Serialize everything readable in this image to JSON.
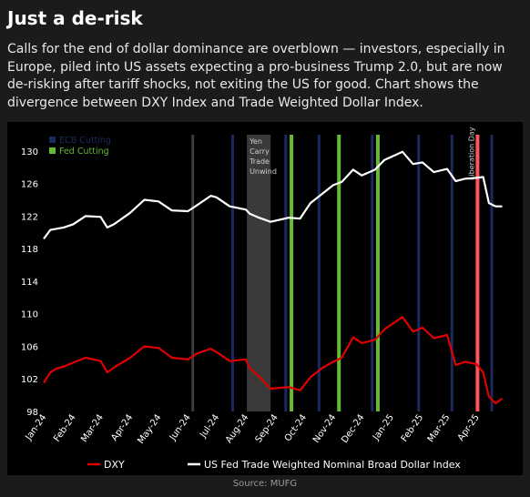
{
  "title": "Just a de-risk",
  "subtitle": "Calls for the end of dollar dominance are overblown — investors, especially in Europe, piled into US assets expecting a pro-business Trump 2.0, but are now de-risking after tariff shocks, not exiting the US for good. Chart shows the divergence between DXY Index and Trade Weighted Dollar Index.",
  "source": "Source: MUFG",
  "colors": {
    "background": "#1b1b1b",
    "chart_background": "#000000",
    "dxy": "#e00000",
    "twd": "#ffffff",
    "ecb_cutting": "#1a2a5e",
    "fed_cutting": "#66bb33",
    "liberation_day": "#ff5555",
    "yen_unwind": "#3a3a3a",
    "vline_dark": "#3c3c3c"
  },
  "chart_data": {
    "type": "line",
    "ylim": [
      98,
      132
    ],
    "yticks": [
      98,
      102,
      106,
      110,
      114,
      118,
      122,
      126,
      130
    ],
    "xlim": [
      "2024-01-01",
      "2025-05-10"
    ],
    "xticks": [
      "Jan-24",
      "Feb-24",
      "Mar-24",
      "Apr-24",
      "May-24",
      "Jun-24",
      "Jul-24",
      "Aug-24",
      "Sep-24",
      "Oct-24",
      "Nov-24",
      "Dec-24",
      "Jan-25",
      "Feb-25",
      "Mar-25",
      "Apr-25"
    ],
    "xtick_dates": [
      "2024-01-01",
      "2024-02-01",
      "2024-03-01",
      "2024-04-01",
      "2024-05-01",
      "2024-06-01",
      "2024-07-01",
      "2024-08-01",
      "2024-09-01",
      "2024-10-01",
      "2024-11-01",
      "2024-12-01",
      "2025-01-01",
      "2025-02-01",
      "2025-03-01",
      "2025-04-01"
    ],
    "grid": false,
    "legend_position": "top-left",
    "legend": [
      {
        "label": "ECB Cutting",
        "color": "#1a2a5e"
      },
      {
        "label": "Fed Cutting",
        "color": "#66bb33"
      }
    ],
    "bottom_legend": [
      {
        "label": "DXY",
        "color": "#e00000"
      },
      {
        "label": "US Fed Trade Weighted Nominal Broad Dollar Index",
        "color": "#ffffff"
      }
    ],
    "annotations": [
      {
        "text": [
          "Yen",
          "Carry",
          "Trade",
          "Unwind"
        ],
        "date": "2024-08-02"
      },
      {
        "text": "Liberation Day",
        "date": "2025-04-02",
        "rotated": true
      }
    ],
    "shaded_regions": [
      {
        "name": "Yen Carry Trade Unwind",
        "start": "2024-08-02",
        "end": "2024-08-27",
        "color": "#3a3a3a"
      }
    ],
    "event_lines": [
      {
        "date": "2024-06-06",
        "kind": "dark"
      },
      {
        "date": "2024-07-18",
        "kind": "ecb"
      },
      {
        "date": "2024-09-12",
        "kind": "ecb"
      },
      {
        "date": "2024-09-18",
        "kind": "fed"
      },
      {
        "date": "2024-10-17",
        "kind": "ecb"
      },
      {
        "date": "2024-11-07",
        "kind": "fed"
      },
      {
        "date": "2024-12-12",
        "kind": "ecb"
      },
      {
        "date": "2024-12-18",
        "kind": "fed"
      },
      {
        "date": "2025-01-30",
        "kind": "ecb"
      },
      {
        "date": "2025-03-06",
        "kind": "ecb"
      },
      {
        "date": "2025-04-02",
        "kind": "liberation"
      },
      {
        "date": "2025-04-17",
        "kind": "ecb"
      }
    ],
    "series": [
      {
        "name": "DXY",
        "color": "#e00000",
        "x": [
          "2024-01-01",
          "2024-01-08",
          "2024-01-15",
          "2024-01-22",
          "2024-02-01",
          "2024-02-14",
          "2024-03-01",
          "2024-03-08",
          "2024-03-15",
          "2024-04-01",
          "2024-04-16",
          "2024-05-01",
          "2024-05-15",
          "2024-06-01",
          "2024-06-10",
          "2024-06-25",
          "2024-07-01",
          "2024-07-15",
          "2024-08-01",
          "2024-08-05",
          "2024-08-15",
          "2024-08-27",
          "2024-09-15",
          "2024-09-27",
          "2024-10-08",
          "2024-10-20",
          "2024-11-01",
          "2024-11-10",
          "2024-11-22",
          "2024-12-01",
          "2024-12-15",
          "2024-12-25",
          "2025-01-13",
          "2025-01-24",
          "2025-02-03",
          "2025-02-15",
          "2025-03-01",
          "2025-03-10",
          "2025-03-20",
          "2025-04-01",
          "2025-04-08",
          "2025-04-14",
          "2025-04-21",
          "2025-04-28"
        ],
        "y": [
          101.5,
          102.8,
          103.3,
          103.5,
          104.0,
          104.6,
          104.2,
          102.8,
          103.4,
          104.6,
          106.0,
          105.8,
          104.6,
          104.4,
          105.1,
          105.7,
          105.3,
          104.2,
          104.4,
          103.3,
          102.3,
          100.8,
          101.0,
          100.6,
          102.2,
          103.3,
          104.1,
          104.6,
          107.1,
          106.4,
          106.8,
          108.1,
          109.6,
          107.8,
          108.3,
          107.0,
          107.4,
          103.7,
          104.1,
          103.8,
          102.8,
          99.8,
          99.0,
          99.6
        ]
      },
      {
        "name": "US Fed Trade Weighted Nominal Broad Dollar Index",
        "color": "#ffffff",
        "x": [
          "2024-01-01",
          "2024-01-08",
          "2024-01-22",
          "2024-02-01",
          "2024-02-14",
          "2024-03-01",
          "2024-03-08",
          "2024-03-15",
          "2024-04-01",
          "2024-04-16",
          "2024-05-01",
          "2024-05-15",
          "2024-06-01",
          "2024-06-10",
          "2024-06-25",
          "2024-07-01",
          "2024-07-15",
          "2024-08-01",
          "2024-08-05",
          "2024-08-15",
          "2024-08-27",
          "2024-09-15",
          "2024-09-27",
          "2024-10-08",
          "2024-10-20",
          "2024-11-01",
          "2024-11-10",
          "2024-11-22",
          "2024-12-01",
          "2024-12-15",
          "2024-12-25",
          "2025-01-13",
          "2025-01-24",
          "2025-02-03",
          "2025-02-15",
          "2025-03-01",
          "2025-03-10",
          "2025-03-20",
          "2025-04-01",
          "2025-04-08",
          "2025-04-14",
          "2025-04-21",
          "2025-04-28"
        ],
        "y": [
          119.2,
          120.3,
          120.6,
          121.0,
          122.0,
          121.9,
          120.6,
          121.0,
          122.4,
          124.0,
          123.8,
          122.7,
          122.6,
          123.3,
          124.5,
          124.3,
          123.2,
          122.8,
          122.3,
          121.8,
          121.3,
          121.8,
          121.7,
          123.6,
          124.7,
          125.8,
          126.2,
          127.7,
          127.0,
          127.7,
          128.9,
          129.9,
          128.4,
          128.6,
          127.4,
          127.8,
          126.3,
          126.6,
          126.7,
          126.8,
          123.6,
          123.2,
          123.2
        ]
      }
    ]
  }
}
